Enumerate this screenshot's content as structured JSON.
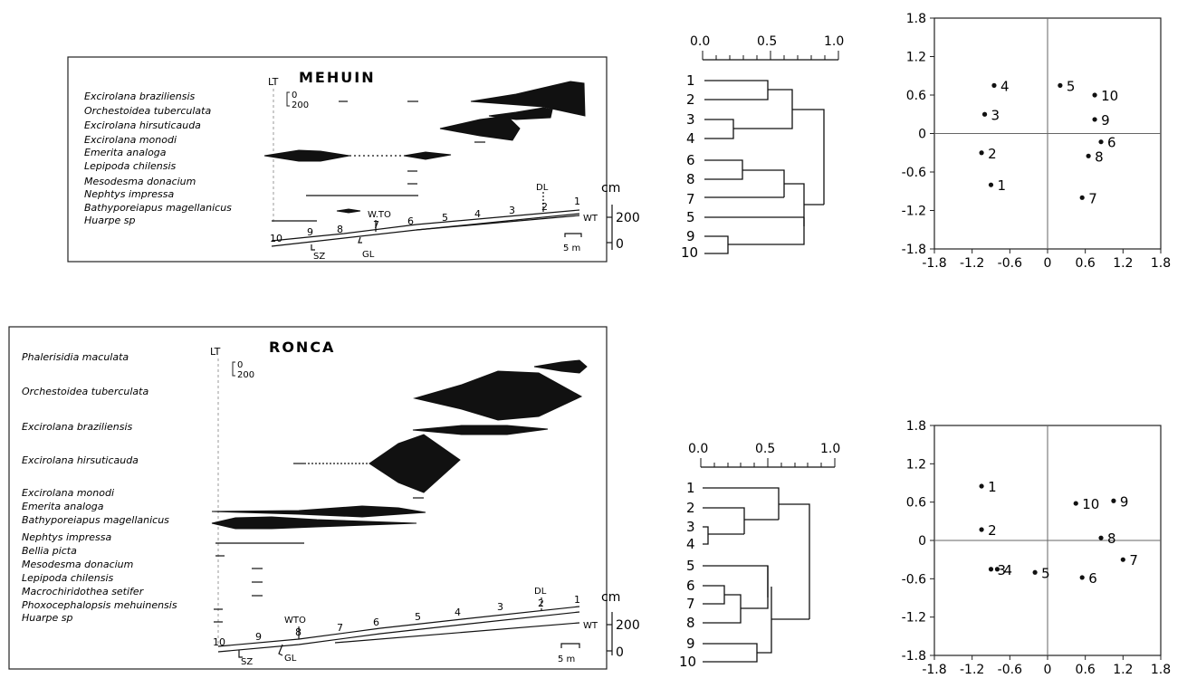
{
  "figure": {
    "panels": [
      {
        "site": "MEHUIN",
        "lt_label": "LT",
        "scale_top": "0",
        "scale_bottom": "200",
        "species": [
          "Excirolana braziliensis",
          "Orchestoidea tuberculata",
          "Excirolana hirsuticauda",
          "Excirolana monodi",
          "Emerita analoga",
          "Lepipoda chilensis",
          "Mesodesma donacium",
          "Nephtys impressa",
          "Bathyporeiapus magellanicus",
          "Huarpe sp"
        ],
        "transect_labels": [
          "DL",
          "W.TO",
          "WT",
          "SZ",
          "GL"
        ],
        "stations": [
          "10",
          "9",
          "8",
          "7",
          "6",
          "5",
          "4",
          "3",
          "2",
          "1"
        ],
        "height_unit": "cm",
        "height_ticks": [
          "200",
          "0"
        ],
        "scale_bar": "5 m"
      },
      {
        "site": "RONCA",
        "lt_label": "LT",
        "scale_top": "0",
        "scale_bottom": "200",
        "species": [
          "Phalerisidia maculata",
          "Orchestoidea tuberculata",
          "Excirolana braziliensis",
          "Excirolana hirsuticauda",
          "Excirolana monodi",
          "Emerita analoga",
          "Bathyporeiapus magellanicus",
          "Nephtys impressa",
          "Bellia picta",
          "Mesodesma donacium",
          "Lepipoda chilensis",
          "Macrochiridothea setifer",
          "Phoxocephalopsis mehuinensis",
          "Huarpe sp"
        ],
        "transect_labels": [
          "DL",
          "WTO",
          "WT",
          "SZ",
          "GL"
        ],
        "stations": [
          "10",
          "9",
          "8",
          "7",
          "6",
          "5",
          "4",
          "3",
          "2",
          "1"
        ],
        "height_unit": "cm",
        "height_ticks": [
          "200",
          "0"
        ],
        "scale_bar": "5 m"
      }
    ],
    "dendrograms": [
      {
        "axis_ticks": [
          "0.0",
          "0.5",
          "1.0"
        ],
        "leaf_order": [
          "1",
          "2",
          "3",
          "4",
          "6",
          "8",
          "7",
          "5",
          "9",
          "10"
        ]
      },
      {
        "axis_ticks": [
          "0.0",
          "0.5",
          "1.0"
        ],
        "leaf_order": [
          "1",
          "2",
          "3",
          "4",
          "5",
          "6",
          "7",
          "8",
          "9",
          "10"
        ]
      }
    ],
    "ordinations": [
      {
        "x_ticks": [
          "-1.8",
          "-1.2",
          "-0.6",
          "0",
          "0.6",
          "1.2",
          "1.8"
        ],
        "y_ticks": [
          "1.8",
          "1.2",
          "0.6",
          "0",
          "-0.6",
          "-1.2",
          "-1.8"
        ],
        "points": [
          {
            "label": "1",
            "x": -0.9,
            "y": -0.8
          },
          {
            "label": "2",
            "x": -1.05,
            "y": -0.3
          },
          {
            "label": "3",
            "x": -1.0,
            "y": 0.3
          },
          {
            "label": "4",
            "x": -0.85,
            "y": 0.75
          },
          {
            "label": "5",
            "x": 0.2,
            "y": 0.75
          },
          {
            "label": "6",
            "x": 0.85,
            "y": -0.13
          },
          {
            "label": "7",
            "x": 0.55,
            "y": -1.0
          },
          {
            "label": "8",
            "x": 0.65,
            "y": -0.35
          },
          {
            "label": "9",
            "x": 0.75,
            "y": 0.22
          },
          {
            "label": "10",
            "x": 0.75,
            "y": 0.6
          }
        ]
      },
      {
        "x_ticks": [
          "-1.8",
          "-1.2",
          "-0.6",
          "0",
          "0.6",
          "1.2",
          "1.8"
        ],
        "y_ticks": [
          "1.8",
          "1.2",
          "0.6",
          "0",
          "-0.6",
          "-1.2",
          "-1.8"
        ],
        "points": [
          {
            "label": "1",
            "x": -1.05,
            "y": 0.85
          },
          {
            "label": "2",
            "x": -1.05,
            "y": 0.17
          },
          {
            "label": "3",
            "x": -0.9,
            "y": -0.45
          },
          {
            "label": "4",
            "x": -0.8,
            "y": -0.45
          },
          {
            "label": "5",
            "x": -0.2,
            "y": -0.5
          },
          {
            "label": "6",
            "x": 0.55,
            "y": -0.58
          },
          {
            "label": "7",
            "x": 1.2,
            "y": -0.3
          },
          {
            "label": "8",
            "x": 0.85,
            "y": 0.04
          },
          {
            "label": "9",
            "x": 1.05,
            "y": 0.62
          },
          {
            "label": "10",
            "x": 0.45,
            "y": 0.58
          }
        ]
      }
    ]
  }
}
